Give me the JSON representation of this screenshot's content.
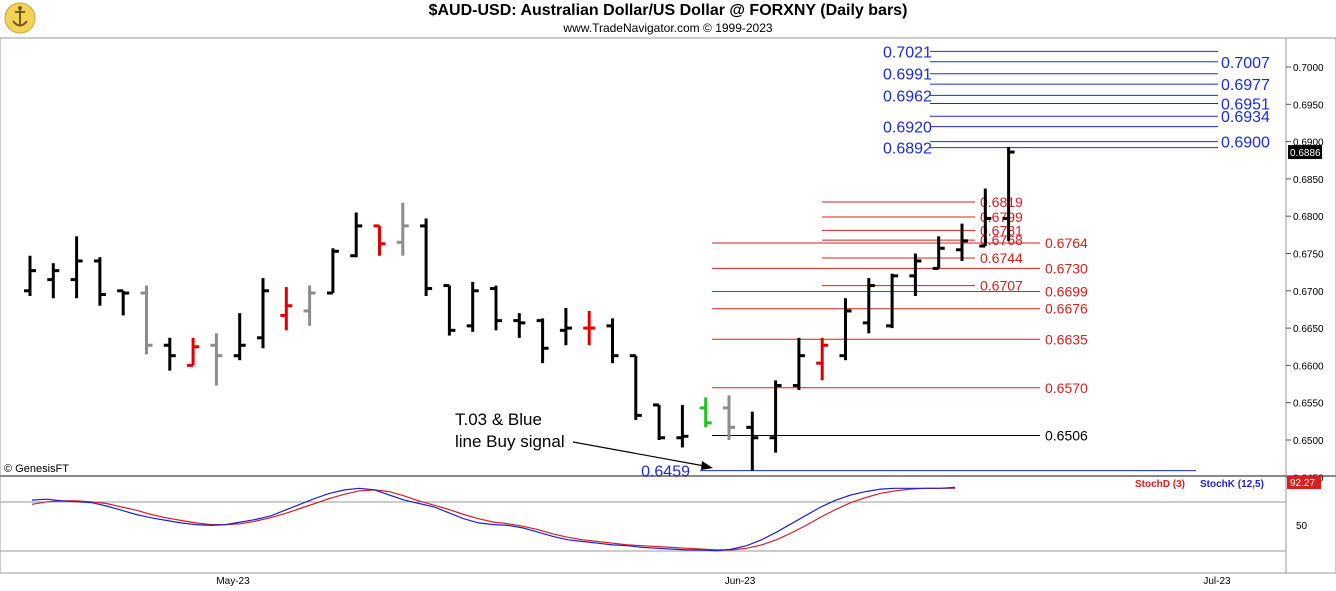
{
  "header": {
    "title": "$AUD-USD:  Australian Dollar/US Dollar @ FORXNY  (Daily bars)",
    "subtitle": "www.TradeNavigator.com © 1999-2023",
    "copyright": "© GenesisFT"
  },
  "chart_data": {
    "type": "ohlc",
    "price_axis": {
      "min": 0.645,
      "max": 0.7,
      "step": 0.005,
      "ticks": [
        "0.7000",
        "0.6950",
        "0.6900",
        "0.6850",
        "0.6800",
        "0.6750",
        "0.6700",
        "0.6650",
        "0.6600",
        "0.6550",
        "0.6500",
        "0.6450"
      ],
      "last_price": "0.6886"
    },
    "x_axis": {
      "labels": [
        "May-23",
        "Jun-23",
        "Jul-23"
      ]
    },
    "bars": [
      {
        "o": 0.67,
        "h": 0.6747,
        "l": 0.6693,
        "c": 0.6727,
        "color": "black"
      },
      {
        "o": 0.6715,
        "h": 0.6737,
        "l": 0.669,
        "c": 0.6727,
        "color": "black"
      },
      {
        "o": 0.6715,
        "h": 0.6773,
        "l": 0.669,
        "c": 0.674,
        "color": "black"
      },
      {
        "o": 0.674,
        "h": 0.6745,
        "l": 0.668,
        "c": 0.6695,
        "color": "black"
      },
      {
        "o": 0.67,
        "h": 0.67,
        "l": 0.6667,
        "c": 0.6697,
        "color": "black"
      },
      {
        "o": 0.6697,
        "h": 0.6707,
        "l": 0.6615,
        "c": 0.6627,
        "color": "gray"
      },
      {
        "o": 0.6627,
        "h": 0.6637,
        "l": 0.6593,
        "c": 0.6613,
        "color": "black"
      },
      {
        "o": 0.66,
        "h": 0.6637,
        "l": 0.66,
        "c": 0.6625,
        "color": "red"
      },
      {
        "o": 0.6627,
        "h": 0.6643,
        "l": 0.6573,
        "c": 0.6613,
        "color": "gray"
      },
      {
        "o": 0.6613,
        "h": 0.667,
        "l": 0.6607,
        "c": 0.6627,
        "color": "black"
      },
      {
        "o": 0.6637,
        "h": 0.6717,
        "l": 0.6623,
        "c": 0.67,
        "color": "black"
      },
      {
        "o": 0.6667,
        "h": 0.6705,
        "l": 0.6647,
        "c": 0.668,
        "color": "red"
      },
      {
        "o": 0.6673,
        "h": 0.6707,
        "l": 0.6653,
        "c": 0.6697,
        "color": "gray"
      },
      {
        "o": 0.6697,
        "h": 0.6757,
        "l": 0.6697,
        "c": 0.6753,
        "color": "black"
      },
      {
        "o": 0.6747,
        "h": 0.6805,
        "l": 0.6745,
        "c": 0.6787,
        "color": "black"
      },
      {
        "o": 0.6787,
        "h": 0.6787,
        "l": 0.6747,
        "c": 0.6763,
        "color": "red"
      },
      {
        "o": 0.6765,
        "h": 0.6818,
        "l": 0.6747,
        "c": 0.6787,
        "color": "gray"
      },
      {
        "o": 0.6787,
        "h": 0.6797,
        "l": 0.6693,
        "c": 0.6703,
        "color": "black"
      },
      {
        "o": 0.6707,
        "h": 0.6707,
        "l": 0.664,
        "c": 0.6647,
        "color": "black"
      },
      {
        "o": 0.6653,
        "h": 0.6712,
        "l": 0.6645,
        "c": 0.67,
        "color": "black"
      },
      {
        "o": 0.6703,
        "h": 0.6707,
        "l": 0.6647,
        "c": 0.666,
        "color": "black"
      },
      {
        "o": 0.666,
        "h": 0.667,
        "l": 0.6637,
        "c": 0.6657,
        "color": "black"
      },
      {
        "o": 0.666,
        "h": 0.6663,
        "l": 0.6603,
        "c": 0.6623,
        "color": "black"
      },
      {
        "o": 0.6647,
        "h": 0.6677,
        "l": 0.6627,
        "c": 0.665,
        "color": "black"
      },
      {
        "o": 0.665,
        "h": 0.6673,
        "l": 0.6627,
        "c": 0.665,
        "color": "red"
      },
      {
        "o": 0.6653,
        "h": 0.6663,
        "l": 0.6603,
        "c": 0.6613,
        "color": "black"
      },
      {
        "o": 0.6613,
        "h": 0.6613,
        "l": 0.6527,
        "c": 0.6533,
        "color": "black"
      },
      {
        "o": 0.6547,
        "h": 0.6547,
        "l": 0.65,
        "c": 0.6503,
        "color": "black"
      },
      {
        "o": 0.6503,
        "h": 0.6547,
        "l": 0.649,
        "c": 0.6505,
        "color": "black"
      },
      {
        "o": 0.6543,
        "h": 0.6557,
        "l": 0.6517,
        "c": 0.6523,
        "color": "green"
      },
      {
        "o": 0.6543,
        "h": 0.656,
        "l": 0.65,
        "c": 0.6517,
        "color": "gray"
      },
      {
        "o": 0.6517,
        "h": 0.6538,
        "l": 0.6459,
        "c": 0.6503,
        "color": "black"
      },
      {
        "o": 0.6503,
        "h": 0.658,
        "l": 0.6483,
        "c": 0.6573,
        "color": "black"
      },
      {
        "o": 0.6573,
        "h": 0.6637,
        "l": 0.6567,
        "c": 0.6613,
        "color": "black"
      },
      {
        "o": 0.6603,
        "h": 0.6637,
        "l": 0.658,
        "c": 0.6627,
        "color": "red"
      },
      {
        "o": 0.6613,
        "h": 0.669,
        "l": 0.6607,
        "c": 0.6673,
        "color": "black"
      },
      {
        "o": 0.6657,
        "h": 0.6717,
        "l": 0.6643,
        "c": 0.6707,
        "color": "black"
      },
      {
        "o": 0.6653,
        "h": 0.6723,
        "l": 0.665,
        "c": 0.672,
        "color": "black"
      },
      {
        "o": 0.672,
        "h": 0.675,
        "l": 0.6693,
        "c": 0.674,
        "color": "black"
      },
      {
        "o": 0.673,
        "h": 0.6773,
        "l": 0.673,
        "c": 0.6757,
        "color": "black"
      },
      {
        "o": 0.6755,
        "h": 0.679,
        "l": 0.674,
        "c": 0.6767,
        "color": "black"
      },
      {
        "o": 0.676,
        "h": 0.6837,
        "l": 0.676,
        "c": 0.6797,
        "color": "black"
      },
      {
        "o": 0.6797,
        "h": 0.6893,
        "l": 0.6767,
        "c": 0.6886,
        "color": "black"
      }
    ],
    "levels": [
      {
        "label": "0.7021",
        "value": 0.7021,
        "side": "left",
        "color": "#1a2bd6"
      },
      {
        "label": "0.7007",
        "value": 0.7007,
        "side": "right",
        "color": "#1a2bd6"
      },
      {
        "label": "0.6991",
        "value": 0.6991,
        "side": "left",
        "color": "#1a2bd6"
      },
      {
        "label": "0.6977",
        "value": 0.6977,
        "side": "right",
        "color": "#1a2bd6"
      },
      {
        "label": "0.6962",
        "value": 0.6962,
        "side": "left",
        "color": "#1a2bd6"
      },
      {
        "label": "0.6951",
        "value": 0.6951,
        "side": "right",
        "color": "#1a2bd6"
      },
      {
        "label": "0.6934",
        "value": 0.6934,
        "side": "right",
        "color": "#1a2bd6"
      },
      {
        "label": "0.6920",
        "value": 0.692,
        "side": "left",
        "color": "#1a2bd6"
      },
      {
        "label": "0.6900",
        "value": 0.69,
        "side": "right",
        "color": "#1a2bd6"
      },
      {
        "label": "0.6892",
        "value": 0.6892,
        "side": "left",
        "color": "#1a2bd6"
      },
      {
        "label": "0.6819",
        "value": 0.6819,
        "side": "short",
        "color": "#d81f1f"
      },
      {
        "label": "0.6799",
        "value": 0.6799,
        "side": "short",
        "color": "#d81f1f"
      },
      {
        "label": "0.6781",
        "value": 0.6781,
        "side": "short",
        "color": "#d81f1f"
      },
      {
        "label": "0.6768",
        "value": 0.6768,
        "side": "short",
        "color": "#d81f1f"
      },
      {
        "label": "0.6764",
        "value": 0.6764,
        "side": "long",
        "color": "#d81f1f"
      },
      {
        "label": "0.6744",
        "value": 0.6744,
        "side": "short",
        "color": "#d81f1f"
      },
      {
        "label": "0.6730",
        "value": 0.673,
        "side": "long",
        "color": "#d81f1f"
      },
      {
        "label": "0.6707",
        "value": 0.6707,
        "side": "short",
        "color": "#d81f1f"
      },
      {
        "label": "0.6699",
        "value": 0.6699,
        "side": "long",
        "color": "#d81f1f"
      },
      {
        "label": "0.6676",
        "value": 0.6676,
        "side": "long",
        "color": "#d81f1f"
      },
      {
        "label": "0.6635",
        "value": 0.6635,
        "side": "long",
        "color": "#d81f1f"
      },
      {
        "label": "0.6570",
        "value": 0.657,
        "side": "long",
        "color": "#d81f1f"
      },
      {
        "label": "0.6506",
        "value": 0.6506,
        "side": "long",
        "color": "#000000"
      },
      {
        "label": "0.6459",
        "value": 0.6459,
        "side": "base",
        "color": "#1a2bd6"
      }
    ],
    "annotation": {
      "line1": "T.03 & Blue",
      "line2": "line Buy signal"
    },
    "stochastic": {
      "legend_d": "StochD (3)",
      "legend_k": "StochK (12,5)",
      "last_value": "92.27",
      "axis_label": "50",
      "ylim": [
        0,
        100
      ],
      "k_values": [
        78,
        79,
        77,
        76,
        75,
        71,
        66,
        61,
        57,
        54,
        51,
        49,
        48,
        49,
        52,
        55,
        59,
        66,
        73,
        80,
        86,
        90,
        92,
        90,
        84,
        78,
        74,
        70,
        63,
        56,
        51,
        49,
        48,
        45,
        40,
        35,
        31,
        29,
        27,
        25,
        24,
        22,
        21,
        20,
        19,
        19,
        18,
        20,
        24,
        31,
        40,
        50,
        60,
        70,
        78,
        84,
        88,
        91,
        92,
        92,
        92,
        92,
        93
      ],
      "d_values": [
        73,
        76,
        77,
        77,
        76,
        74,
        70,
        66,
        61,
        57,
        54,
        51,
        49,
        49,
        50,
        53,
        57,
        62,
        68,
        74,
        80,
        85,
        89,
        90,
        88,
        83,
        77,
        72,
        67,
        61,
        56,
        52,
        50,
        47,
        43,
        38,
        34,
        31,
        29,
        27,
        25,
        24,
        23,
        22,
        21,
        20,
        19,
        19,
        21,
        25,
        31,
        39,
        48,
        58,
        67,
        75,
        81,
        86,
        89,
        91,
        92,
        92,
        92
      ]
    },
    "colors": {
      "bar_black": "#000000",
      "bar_red": "#e00000",
      "bar_gray": "#8c8c8c",
      "bar_green": "#1ec41e",
      "stoch_k": "#2222cc",
      "stoch_d": "#d81f1f"
    }
  }
}
